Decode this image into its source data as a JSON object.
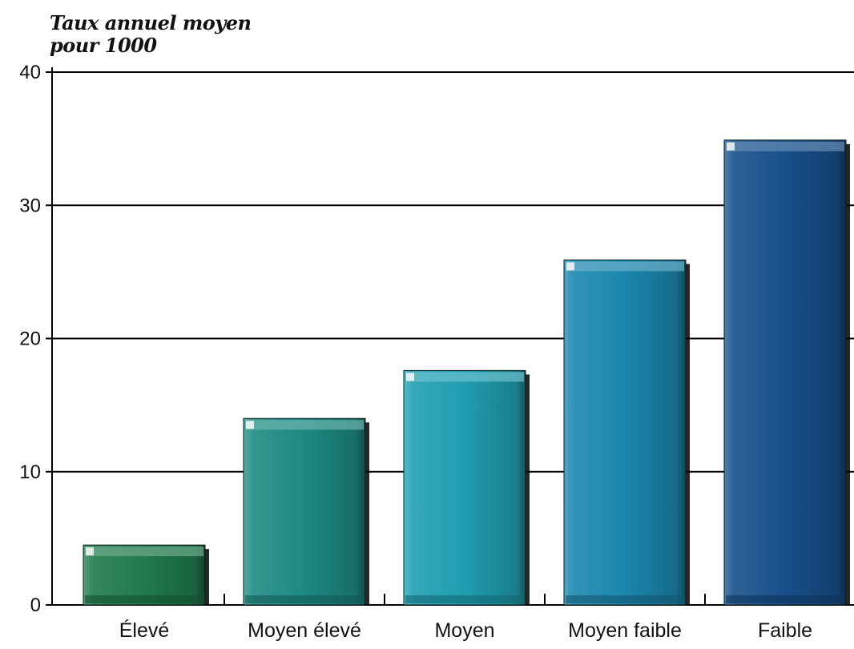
{
  "chart_data": {
    "type": "bar",
    "ylabel_lines": [
      "Taux annuel moyen",
      "pour 1000"
    ],
    "categories": [
      "Élevé",
      "Moyen élevé",
      "Moyen",
      "Moyen faible",
      "Faible"
    ],
    "values": [
      4.5,
      14.0,
      17.6,
      25.9,
      34.9
    ],
    "ylim": [
      0,
      40
    ],
    "yticks": [
      0,
      10,
      20,
      30,
      40
    ],
    "grid": true,
    "colors": [
      "#1f7a4c",
      "#1d8a82",
      "#1f9eb0",
      "#1b86ad",
      "#174f8a"
    ]
  }
}
